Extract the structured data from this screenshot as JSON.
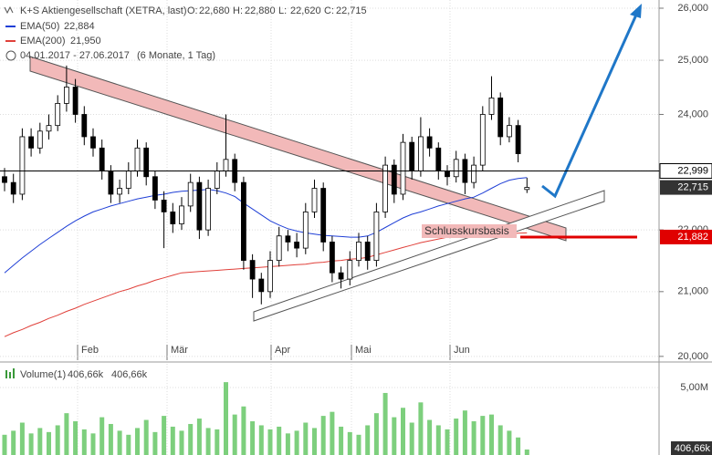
{
  "chart_data": [
    {
      "type": "candlestick",
      "title": "K+S Aktiengesellschaft (XETRA, last)",
      "stats": [
        {
          "name": "O:",
          "value": 22680,
          "label": "22,680"
        },
        {
          "name": "H:",
          "value": 22880,
          "label": "22,880"
        },
        {
          "name": "L:",
          "value": 22620,
          "label": "22,620"
        },
        {
          "name": "C:",
          "value": 22715,
          "label": "22,715"
        }
      ],
      "date_range": "04.01.2017 - 27.06.2017",
      "period": "(6 Monate, 1 Tag)",
      "x_labels": [
        "Feb",
        "Mär",
        "Apr",
        "Mai",
        "Jun"
      ],
      "log_scale": true,
      "grid": true,
      "ylim": [
        19943,
        26161
      ],
      "yticks": [
        {
          "value": 20000,
          "label": "20,000"
        },
        {
          "value": 21000,
          "label": "21,000"
        },
        {
          "value": 22000,
          "label": "22,000"
        },
        {
          "value": 23000,
          "label": "23,000"
        },
        {
          "value": 24000,
          "label": "24,000"
        },
        {
          "value": 25000,
          "label": "25,000"
        },
        {
          "value": 26000,
          "label": "26,000"
        }
      ],
      "open": [
        22900,
        22800,
        22600,
        23600,
        23400,
        23700,
        23800,
        24200,
        24500,
        24000,
        23600,
        23400,
        23000,
        22600,
        22700,
        23000,
        23400,
        22900,
        22500,
        22300,
        22100,
        22400,
        22800,
        22000,
        22700,
        23000,
        23200,
        22800,
        21500,
        21200,
        21000,
        21500,
        21900,
        21800,
        21700,
        22300,
        22700,
        21800,
        21300,
        21200,
        21500,
        21800,
        21500,
        22300,
        23100,
        22600,
        23500,
        23000,
        23600,
        23400,
        23000,
        22900,
        23200,
        22800,
        23100,
        24000,
        24300,
        23600,
        23800,
        22680
      ],
      "high": [
        23050,
        22950,
        23750,
        23750,
        23850,
        24000,
        24350,
        24900,
        24650,
        24150,
        23750,
        23550,
        23100,
        22850,
        23150,
        23550,
        23500,
        23000,
        22650,
        22450,
        22550,
        22950,
        22900,
        22850,
        23150,
        24000,
        23300,
        22900,
        21600,
        21300,
        21650,
        22050,
        22000,
        21950,
        22450,
        22850,
        22800,
        21900,
        21400,
        21650,
        21950,
        21900,
        22450,
        23250,
        23200,
        23650,
        23600,
        23950,
        23750,
        23500,
        23100,
        23350,
        23300,
        23250,
        24150,
        24700,
        24400,
        23950,
        23900,
        22880
      ],
      "low": [
        22650,
        22450,
        22500,
        23250,
        23300,
        23550,
        23700,
        24050,
        23850,
        23450,
        23250,
        22850,
        22450,
        22450,
        22600,
        22900,
        22750,
        22350,
        21700,
        21950,
        22000,
        22300,
        21850,
        21900,
        22600,
        22900,
        22650,
        21350,
        20900,
        20800,
        20900,
        21400,
        21650,
        21550,
        21600,
        22200,
        21650,
        21150,
        21050,
        21100,
        21400,
        21350,
        21400,
        22200,
        22450,
        22500,
        22850,
        22900,
        23250,
        22850,
        22750,
        22800,
        22600,
        22700,
        23000,
        23900,
        23450,
        23500,
        23150,
        22620
      ],
      "close": [
        22800,
        22600,
        23600,
        23400,
        23700,
        23800,
        24200,
        24500,
        24000,
        23600,
        23400,
        23000,
        22600,
        22700,
        23000,
        23400,
        22900,
        22500,
        22300,
        22100,
        22400,
        22800,
        22000,
        22700,
        23000,
        23200,
        22800,
        21500,
        21200,
        21000,
        21500,
        21900,
        21800,
        21700,
        22300,
        22700,
        21800,
        21300,
        21200,
        21500,
        21800,
        21500,
        22300,
        23100,
        22600,
        23500,
        23000,
        23600,
        23400,
        23000,
        22900,
        23200,
        22800,
        23100,
        24000,
        24300,
        23600,
        23800,
        23300,
        22715
      ],
      "series": [
        {
          "name": "EMA(50)",
          "color": "#1f3fd6",
          "legend_value_label": "22,884",
          "values": [
            21300,
            21420,
            21540,
            21650,
            21760,
            21860,
            21960,
            22060,
            22150,
            22230,
            22300,
            22350,
            22400,
            22440,
            22480,
            22520,
            22550,
            22580,
            22600,
            22630,
            22650,
            22660,
            22670,
            22680,
            22660,
            22620,
            22560,
            22450,
            22350,
            22250,
            22150,
            22080,
            22020,
            21980,
            21950,
            21930,
            21910,
            21900,
            21890,
            21880,
            21880,
            21900,
            21960,
            22040,
            22120,
            22200,
            22260,
            22300,
            22350,
            22400,
            22440,
            22480,
            22520,
            22550,
            22620,
            22700,
            22780,
            22840,
            22870,
            22884
          ]
        },
        {
          "name": "EMA(200)",
          "color": "#e0403a",
          "legend_value_label": "21,950",
          "values": [
            20300,
            20360,
            20410,
            20470,
            20520,
            20580,
            20630,
            20690,
            20740,
            20800,
            20850,
            20900,
            20950,
            21000,
            21040,
            21090,
            21130,
            21180,
            21220,
            21260,
            21300,
            21310,
            21320,
            21330,
            21340,
            21350,
            21360,
            21370,
            21380,
            21390,
            21400,
            21410,
            21420,
            21430,
            21440,
            21460,
            21470,
            21490,
            21500,
            21520,
            21530,
            21550,
            21590,
            21630,
            21670,
            21710,
            21750,
            21790,
            21820,
            21850,
            21880,
            21900,
            21910,
            21915,
            21920,
            21925,
            21930,
            21935,
            21945,
            21950
          ]
        }
      ],
      "price_lines": [
        {
          "value": 22999,
          "label": "22,999",
          "color": "#000000"
        },
        {
          "value": 22715,
          "label": "22,715",
          "color": "#333333"
        },
        {
          "value": 21882,
          "label": "21,882",
          "color": "#e00000"
        }
      ],
      "annotation": "Schlusskursbasis"
    },
    {
      "type": "bar",
      "title": "Volume(1)",
      "legend_labels": [
        "406,66k",
        "406,66k"
      ],
      "last_label": "406,66k",
      "color": "#7dcf7d",
      "ylim": [
        0,
        6490000
      ],
      "yticks": [
        {
          "value": 5000000,
          "label": "5,00M"
        }
      ],
      "values": [
        1500000,
        1800000,
        2400000,
        1600000,
        2000000,
        1700000,
        2200000,
        3100000,
        2500000,
        1900000,
        1600000,
        2800000,
        2300000,
        1800000,
        1500000,
        2000000,
        2600000,
        1700000,
        2900000,
        2100000,
        1800000,
        2300000,
        2700000,
        2000000,
        1900000,
        5400000,
        3000000,
        3600000,
        2500000,
        2200000,
        1900000,
        2100000,
        1600000,
        1800000,
        2400000,
        2000000,
        2900000,
        3200000,
        2100000,
        1700000,
        1500000,
        2200000,
        3100000,
        4600000,
        2800000,
        3500000,
        2400000,
        3900000,
        2600000,
        2200000,
        1900000,
        2700000,
        3300000,
        2500000,
        2900000,
        3000000,
        2200000,
        1800000,
        1300000,
        406660
      ]
    }
  ]
}
